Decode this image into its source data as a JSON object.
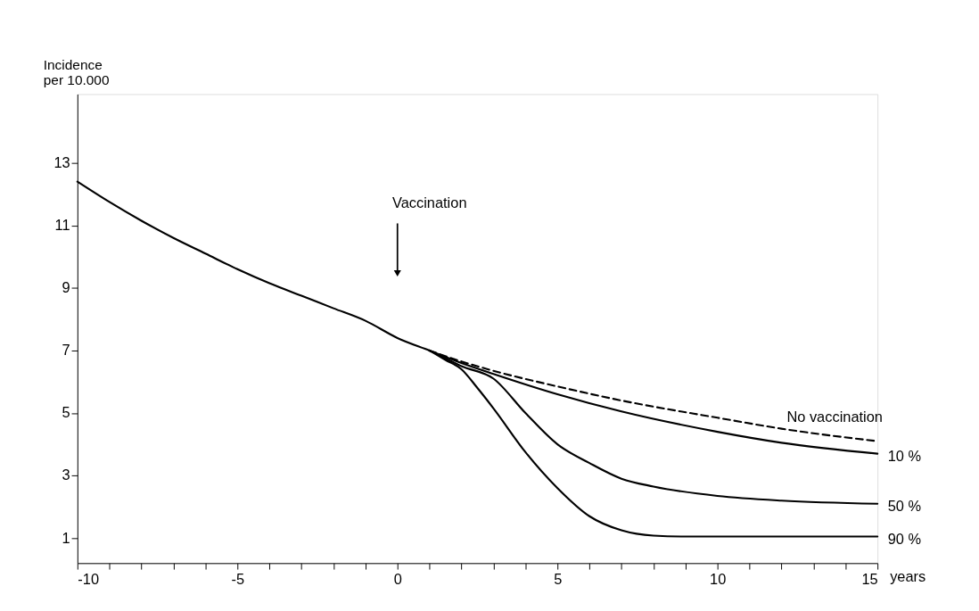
{
  "chart_data": {
    "type": "line",
    "xlabel": "years",
    "ylabel": "Incidence per 10.000",
    "xlim": [
      -10,
      15
    ],
    "ylim": [
      0.2,
      15.2
    ],
    "xticks": [
      -10,
      {
        "value": -9,
        "label": null
      },
      {
        "value": -8,
        "label": null
      },
      {
        "value": -7,
        "label": null
      },
      {
        "value": -6,
        "label": null
      },
      -5,
      {
        "value": -4,
        "label": null
      },
      {
        "value": -3,
        "label": null
      },
      {
        "value": -2,
        "label": null
      },
      {
        "value": -1,
        "label": null
      },
      0,
      {
        "value": 1,
        "label": null
      },
      {
        "value": 2,
        "label": null
      },
      {
        "value": 3,
        "label": null
      },
      {
        "value": 4,
        "label": null
      },
      5,
      {
        "value": 6,
        "label": null
      },
      {
        "value": 7,
        "label": null
      },
      {
        "value": 8,
        "label": null
      },
      {
        "value": 9,
        "label": null
      },
      10,
      {
        "value": 11,
        "label": null
      },
      {
        "value": 12,
        "label": null
      },
      {
        "value": 13,
        "label": null
      },
      {
        "value": 14,
        "label": null
      },
      15
    ],
    "yticks": [
      1,
      3,
      5,
      7,
      9,
      11,
      13
    ],
    "grid": false,
    "marker": "none",
    "annotations": [
      "Vaccination"
    ],
    "series": [
      {
        "name": "No vaccination",
        "color": "#000000",
        "line_style": "dashed",
        "x": [
          1,
          2,
          3,
          5,
          7,
          10,
          12,
          15
        ],
        "values": [
          7.0,
          6.65,
          6.35,
          5.85,
          5.4,
          4.85,
          4.5,
          4.1
        ]
      },
      {
        "name": "10 %",
        "color": "#000000",
        "line_style": "solid",
        "x": [
          -10,
          -9,
          -8,
          -7,
          -6,
          -5,
          -4,
          -3,
          -2,
          -1,
          0,
          1,
          2,
          3,
          5,
          7,
          10,
          12,
          15
        ],
        "values": [
          12.4,
          11.75,
          11.15,
          10.6,
          10.1,
          9.6,
          9.15,
          8.75,
          8.35,
          7.95,
          7.4,
          7.0,
          6.6,
          6.25,
          5.6,
          5.05,
          4.4,
          4.05,
          3.7
        ]
      },
      {
        "name": "50 %",
        "color": "#000000",
        "line_style": "solid",
        "x": [
          1,
          1.5,
          2,
          3,
          4,
          5,
          6,
          7,
          8,
          10,
          12,
          15
        ],
        "values": [
          7.0,
          6.75,
          6.5,
          6.1,
          5.0,
          4.0,
          3.4,
          2.9,
          2.65,
          2.35,
          2.2,
          2.1
        ]
      },
      {
        "name": "90 %",
        "color": "#000000",
        "line_style": "solid",
        "x": [
          1,
          1.5,
          2,
          2.5,
          3,
          4,
          5,
          6,
          7,
          8,
          9,
          10,
          12,
          15
        ],
        "values": [
          7.0,
          6.7,
          6.4,
          5.8,
          5.15,
          3.75,
          2.6,
          1.7,
          1.25,
          1.08,
          1.05,
          1.05,
          1.05,
          1.05
        ]
      }
    ]
  }
}
